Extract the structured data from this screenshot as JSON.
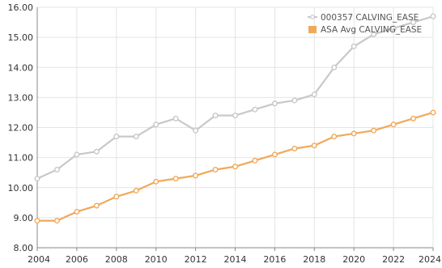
{
  "chart_data": {
    "type": "line",
    "x": [
      2004,
      2005,
      2006,
      2007,
      2008,
      2009,
      2010,
      2011,
      2012,
      2013,
      2014,
      2015,
      2016,
      2017,
      2018,
      2019,
      2020,
      2021,
      2022,
      2023,
      2024
    ],
    "xlim": [
      2004,
      2024
    ],
    "xticks": [
      "2004",
      "2006",
      "2008",
      "2010",
      "2012",
      "2014",
      "2016",
      "2018",
      "2020",
      "2022",
      "2024"
    ],
    "ylim": [
      8,
      16
    ],
    "yticks": [
      "8.00",
      "9.00",
      "10.00",
      "11.00",
      "12.00",
      "13.00",
      "14.00",
      "15.00",
      "16.00"
    ],
    "grid": true,
    "legend_position": "top-right",
    "series": [
      {
        "name": "000357 CALVING_EASE",
        "color": "#c8c8c8",
        "legend_marker": "line",
        "values": [
          10.3,
          10.6,
          11.1,
          11.2,
          11.7,
          11.7,
          12.1,
          12.3,
          11.9,
          12.4,
          12.4,
          12.6,
          12.8,
          12.9,
          13.1,
          14.0,
          14.7,
          15.1,
          15.3,
          15.5,
          15.7
        ]
      },
      {
        "name": "ASA Avg CALVING_EASE",
        "color": "#f0a95a",
        "legend_marker": "square",
        "values": [
          8.9,
          8.9,
          9.2,
          9.4,
          9.7,
          9.9,
          10.2,
          10.3,
          10.4,
          10.6,
          10.7,
          10.9,
          11.1,
          11.3,
          11.4,
          11.7,
          11.8,
          11.9,
          12.1,
          12.3,
          12.5
        ]
      }
    ]
  }
}
